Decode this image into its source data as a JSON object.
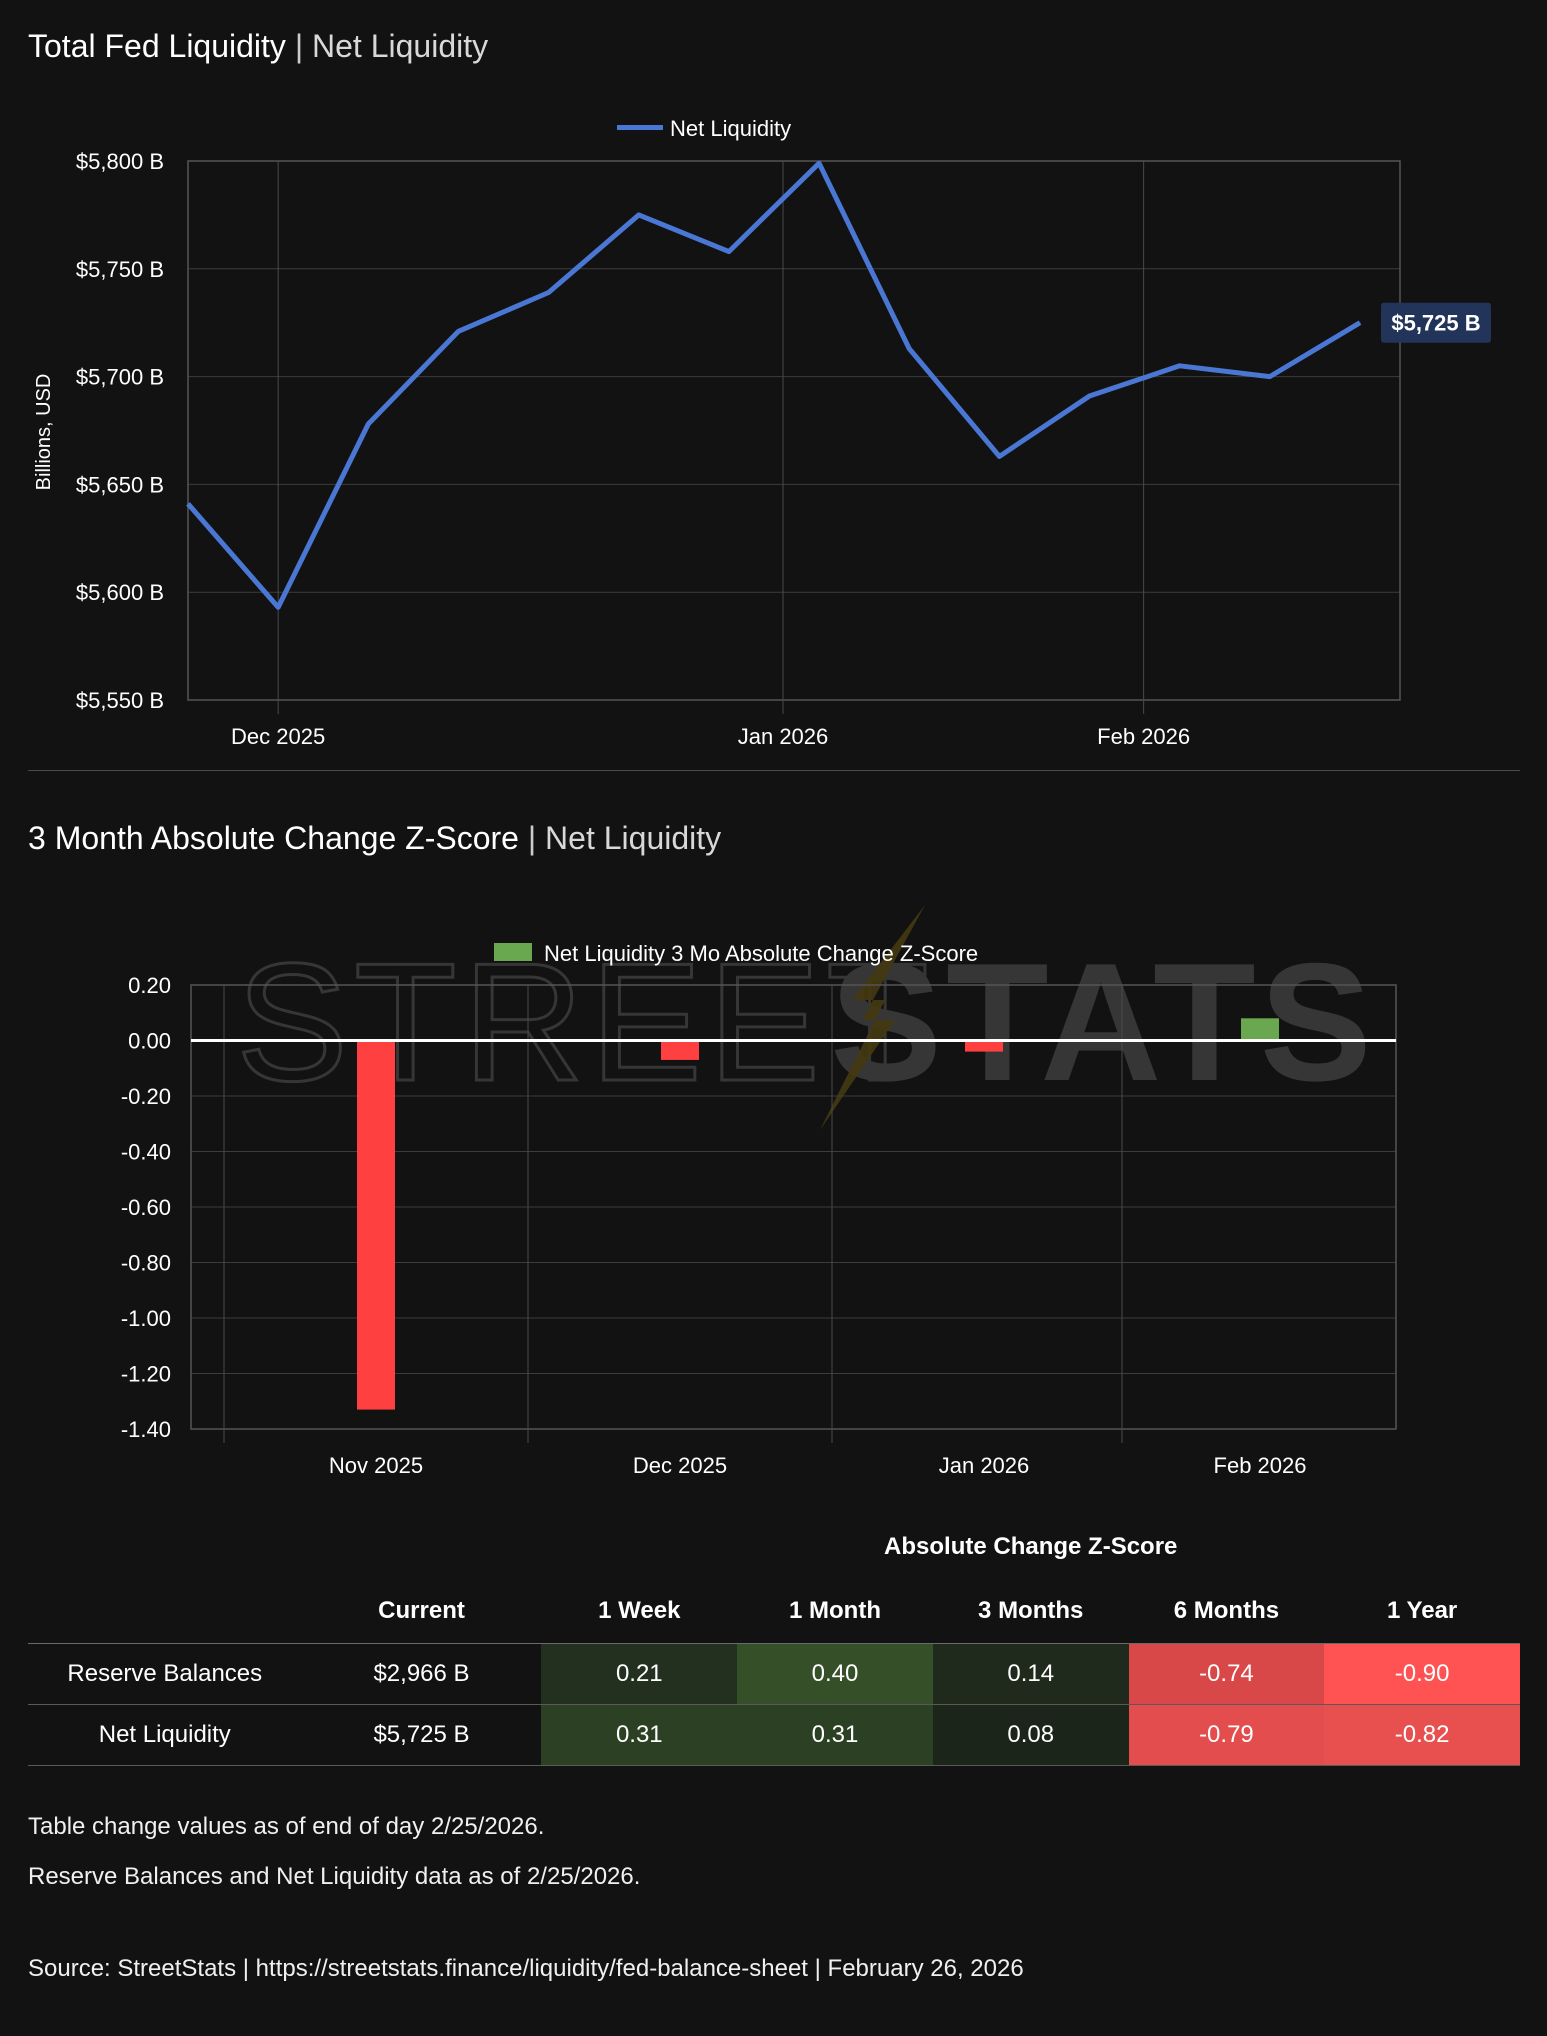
{
  "liquidity_section": {
    "title_bold": "Total Fed Liquidity",
    "title_sep": " | ",
    "title_sub": "Net Liquidity"
  },
  "zscore_section": {
    "title_bold": "3 Month Absolute Change Z-Score",
    "title_sep": " | ",
    "title_sub": "Net Liquidity"
  },
  "watermark": {
    "text_light": "STREET",
    "text_bold": "STATS"
  },
  "chart_data": [
    {
      "type": "line",
      "title": "Total Fed Liquidity | Net Liquidity",
      "ylabel": "Billions, USD",
      "xlabel": "",
      "ylim": [
        5550,
        5800
      ],
      "yticks": [
        5800,
        5750,
        5700,
        5650,
        5600,
        5550
      ],
      "ytick_labels": [
        "$5,800 B",
        "$5,750 B",
        "$5,700 B",
        "$5,650 B",
        "$5,600 B",
        "$5,550 B"
      ],
      "xticks": [
        "Dec 2025",
        "Jan 2026",
        "Feb 2026"
      ],
      "legend": "top-center",
      "grid": true,
      "series": [
        {
          "name": "Net Liquidity",
          "color": "#4a77d4",
          "values": [
            5641,
            5593,
            5678,
            5721,
            5739,
            5775,
            5758,
            5799,
            5713,
            5663,
            5691,
            5705,
            5700,
            5725
          ]
        }
      ],
      "last_value_label": "$5,725 B"
    },
    {
      "type": "bar",
      "title": "3 Month Absolute Change Z-Score | Net Liquidity",
      "ylim": [
        -1.4,
        0.2
      ],
      "yticks": [
        0.2,
        0.0,
        -0.2,
        -0.4,
        -0.6,
        -0.8,
        -1.0,
        -1.2,
        -1.4
      ],
      "ytick_labels": [
        "0.20",
        "0.00",
        "-0.20",
        "-0.40",
        "-0.60",
        "-0.80",
        "-1.00",
        "-1.20",
        "-1.40"
      ],
      "categories": [
        "Nov 2025",
        "Dec 2025",
        "Jan 2026",
        "Feb 2026"
      ],
      "legend": "top-center",
      "grid": true,
      "series": [
        {
          "name": "Net Liquidity 3 Mo Absolute Change Z-Score",
          "values": [
            -1.33,
            -0.07,
            -0.04,
            0.08
          ],
          "positive_color": "#6aa84f",
          "negative_color": "#ff4040"
        }
      ]
    }
  ],
  "table": {
    "group_header": "Absolute Change Z-Score",
    "columns": [
      "",
      "Current",
      "1 Week",
      "1 Month",
      "3 Months",
      "6 Months",
      "1 Year"
    ],
    "rows": [
      {
        "name": "Reserve Balances",
        "current": "$2,966 B",
        "values": [
          "0.21",
          "0.40",
          "0.14",
          "-0.74",
          "-0.90"
        ],
        "colors": [
          "#23301f",
          "#354f28",
          "#1f2a1c",
          "#d94848",
          "#ff5252"
        ]
      },
      {
        "name": "Net Liquidity",
        "current": "$5,725 B",
        "values": [
          "0.31",
          "0.31",
          "0.08",
          "-0.79",
          "-0.82"
        ],
        "colors": [
          "#2c4024",
          "#2c4024",
          "#1c251a",
          "#e34d4d",
          "#e84f4f"
        ]
      }
    ]
  },
  "footer": {
    "note1": "Table change values as of end of day 2/25/2026.",
    "note2": "Reserve Balances and Net Liquidity data as of 2/25/2026.",
    "source": "Source:  StreetStats  |  https://streetstats.finance/liquidity/fed-balance-sheet  |  February 26, 2026"
  }
}
